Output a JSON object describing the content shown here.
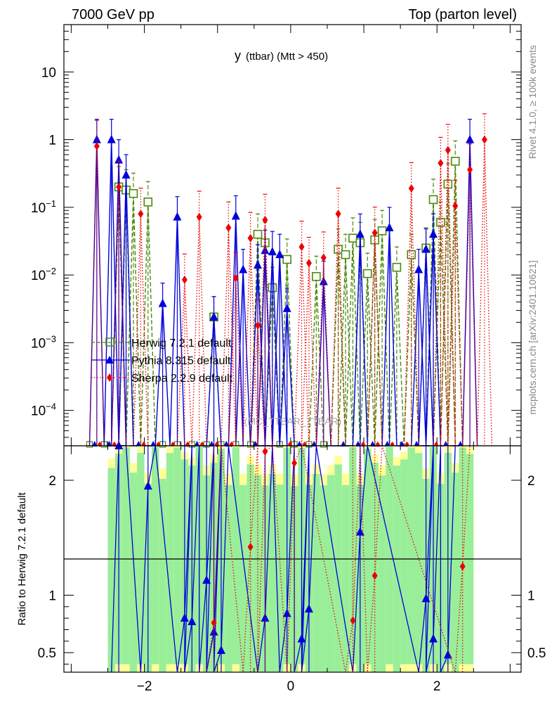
{
  "header": {
    "energy": "7000 GeV pp",
    "process": "Top (parton level)"
  },
  "side_labels": {
    "rivet": "Rivet 4.1.0, ≥ 100k events",
    "mcplots": "mcplots.cern.ch [arXiv:2401.10621]"
  },
  "colors": {
    "herwig": "#4a8a0a",
    "pythia": "#0000dd",
    "sherpa": "#ee0000",
    "band_inner": "#99ee99",
    "band_outer": "#ffff99"
  },
  "chart_data": [
    {
      "type": "line",
      "panel": "main",
      "title": "y",
      "title_suffix": "(ttbar) (Mtt > 450)",
      "watermark": "(MC_TTBAR_TTBAR)",
      "xlabel": "",
      "ylabel": "",
      "xlim": [
        -3.1,
        3.15
      ],
      "yscale": "log",
      "ylim": [
        3e-05,
        50
      ],
      "x_ticks": [
        -2,
        0,
        2
      ],
      "x_tick_labels": [
        "−2",
        "0",
        "2"
      ],
      "y_tick_labels": [
        {
          "value": 10,
          "base": "10",
          "exp": ""
        },
        {
          "value": 1,
          "base": "1",
          "exp": ""
        },
        {
          "value": 0.1,
          "base": "10",
          "exp": "−1"
        },
        {
          "value": 0.01,
          "base": "10",
          "exp": "−2"
        },
        {
          "value": 0.001,
          "base": "10",
          "exp": "−3"
        },
        {
          "value": 0.0001,
          "base": "10",
          "exp": "−4"
        }
      ],
      "legend": {
        "position": "middle-left",
        "entries": [
          "Herwig 7.2.1 default",
          "Pythia 8.315 default",
          "Sherpa 2.2.9 default"
        ]
      },
      "series": [
        {
          "name": "Herwig 7.2.1 default",
          "marker": "open-square",
          "line": "dashed",
          "x": [
            -2.35,
            -2.25,
            -2.15,
            -1.95,
            -1.05,
            -0.45,
            -0.35,
            -0.25,
            -0.05,
            0.35,
            0.65,
            0.75,
            0.85,
            0.95,
            1.05,
            1.15,
            1.25,
            1.45,
            1.65,
            1.85,
            1.95,
            2.05,
            2.15,
            2.25
          ],
          "values": [
            0.2,
            0.18,
            0.16,
            0.12,
            0.0024,
            0.04,
            0.03,
            0.0065,
            0.017,
            0.0095,
            0.024,
            0.02,
            0.035,
            0.03,
            0.0105,
            0.033,
            0.045,
            0.013,
            0.02,
            0.025,
            0.13,
            0.06,
            0.22,
            0.48
          ]
        },
        {
          "name": "Pythia 8.315 default",
          "marker": "filled-triangle",
          "line": "solid",
          "x": [
            -2.65,
            -2.45,
            -2.35,
            -2.25,
            -1.75,
            -1.55,
            -1.05,
            -0.75,
            -0.65,
            -0.45,
            -0.35,
            -0.25,
            -0.15,
            -0.05,
            0.45,
            0.95,
            1.35,
            1.75,
            1.85,
            1.95,
            2.45
          ],
          "values": [
            1.0,
            1.0,
            0.5,
            0.3,
            0.0038,
            0.072,
            0.0024,
            0.074,
            0.012,
            0.014,
            0.023,
            0.022,
            0.02,
            0.0032,
            0.008,
            0.04,
            0.05,
            0.012,
            0.024,
            0.04,
            1.0
          ]
        },
        {
          "name": "Sherpa 2.2.9 default",
          "marker": "filled-diamond",
          "line": "dotted",
          "x": [
            -2.65,
            -2.35,
            -2.05,
            -1.45,
            -1.25,
            -0.85,
            -0.75,
            -0.55,
            -0.45,
            -0.35,
            0.15,
            0.25,
            0.45,
            0.65,
            1.15,
            1.65,
            2.05,
            2.15,
            2.25,
            2.45,
            2.65
          ],
          "values": [
            0.8,
            0.2,
            0.08,
            0.0085,
            0.072,
            0.05,
            0.009,
            0.035,
            0.0018,
            0.065,
            0.026,
            0.015,
            0.018,
            0.08,
            0.042,
            0.19,
            0.45,
            0.7,
            0.105,
            0.36,
            1.0
          ]
        }
      ]
    },
    {
      "type": "line",
      "panel": "ratio",
      "ylabel": "Ratio to Herwig 7.2.1 default",
      "xlim": [
        -3.1,
        3.15
      ],
      "ylim": [
        0.33,
        2.3
      ],
      "y_ticks": [
        0.5,
        1,
        2
      ],
      "y_tick_labels": [
        "0.5",
        "1",
        "2"
      ],
      "reference_line": 1,
      "series": [
        {
          "name": "Pythia 8.315 default",
          "x": [
            -2.35,
            -1.95,
            -1.45,
            -1.35,
            -1.15,
            -1.05,
            -0.95,
            -0.35,
            -0.05,
            0.15,
            0.25,
            0.95,
            1.85,
            1.95,
            2.15
          ],
          "values": [
            2.3,
            1.95,
            0.8,
            0.77,
            1.13,
            0.68,
            0.52,
            0.8,
            0.84,
            0.62,
            0.88,
            1.55,
            0.97,
            0.62,
            0.48
          ]
        },
        {
          "name": "Sherpa 2.2.9 default",
          "x": [
            -1.05,
            -0.55,
            -0.35,
            0.05,
            0.85,
            1.15,
            2.35
          ],
          "values": [
            0.76,
            1.42,
            2.25,
            2.15,
            0.78,
            1.17,
            1.25
          ]
        }
      ]
    }
  ]
}
